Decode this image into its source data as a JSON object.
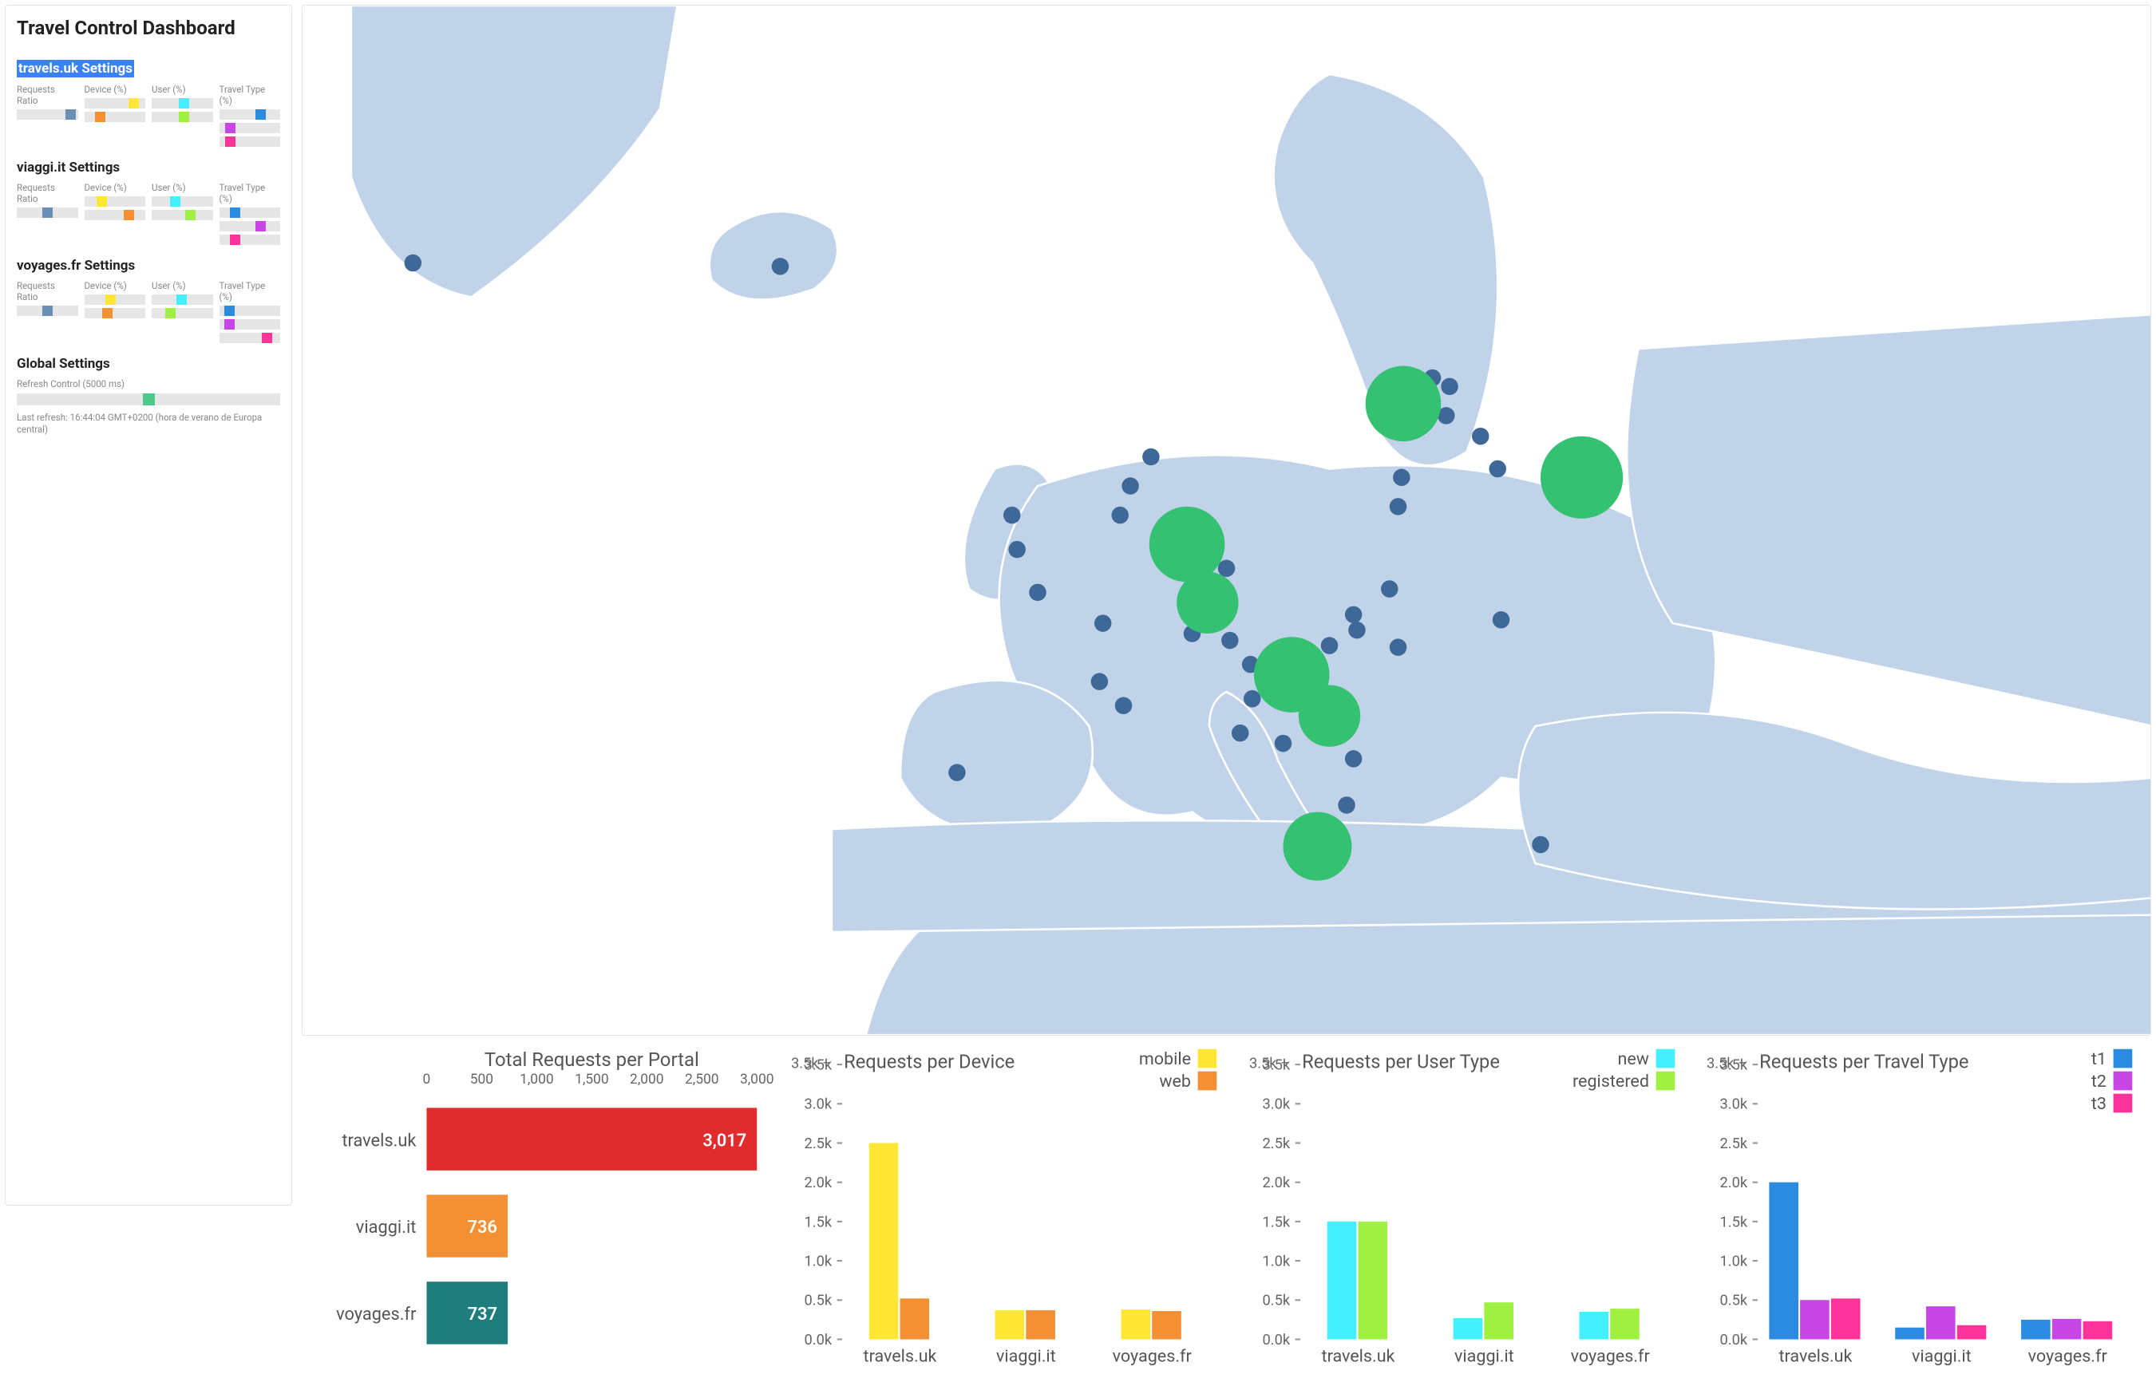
{
  "colors": {
    "map_land": "#c0d3e8",
    "map_border": "#ffffff",
    "map_dot": "#3e6897",
    "map_big": "#34c172",
    "yellow": "#ffe733",
    "orange": "#f29033",
    "cyan": "#44f0ff",
    "lime": "#9ff041",
    "blue": "#2a8be0",
    "magenta": "#c846e6",
    "pink": "#ff3399",
    "steel": "#6a8fb3",
    "red": "#e02c2c",
    "teal": "#1f7d7d",
    "grey_bar": "#e6e6e6",
    "refresh_green": "#4fc98a"
  },
  "sidebar": {
    "title": "Travel Control Dashboard",
    "sections": [
      {
        "title": "travels.uk Settings",
        "highlighted": true,
        "columns": [
          {
            "label": "Requests Ratio",
            "bars": [
              {
                "color": "#6a8fb3",
                "pos": 80
              }
            ]
          },
          {
            "label": "Device (%)",
            "bars": [
              {
                "color": "#ffe733",
                "pos": 72
              },
              {
                "color": "#f29033",
                "pos": 18
              }
            ]
          },
          {
            "label": "User (%)",
            "bars": [
              {
                "color": "#44f0ff",
                "pos": 45
              },
              {
                "color": "#9ff041",
                "pos": 45
              }
            ]
          },
          {
            "label": "Travel Type (%)",
            "bars": [
              {
                "color": "#2a8be0",
                "pos": 60
              },
              {
                "color": "#c846e6",
                "pos": 10
              },
              {
                "color": "#ff3399",
                "pos": 10
              }
            ]
          }
        ]
      },
      {
        "title": "viaggi.it Settings",
        "highlighted": false,
        "columns": [
          {
            "label": "Requests Ratio",
            "bars": [
              {
                "color": "#6a8fb3",
                "pos": 42
              }
            ]
          },
          {
            "label": "Device (%)",
            "bars": [
              {
                "color": "#ffe733",
                "pos": 20
              },
              {
                "color": "#f29033",
                "pos": 65
              }
            ]
          },
          {
            "label": "User (%)",
            "bars": [
              {
                "color": "#44f0ff",
                "pos": 30
              },
              {
                "color": "#9ff041",
                "pos": 55
              }
            ]
          },
          {
            "label": "Travel Type (%)",
            "bars": [
              {
                "color": "#2a8be0",
                "pos": 18
              },
              {
                "color": "#c846e6",
                "pos": 60
              },
              {
                "color": "#ff3399",
                "pos": 18
              }
            ]
          }
        ]
      },
      {
        "title": "voyages.fr Settings",
        "highlighted": false,
        "columns": [
          {
            "label": "Requests Ratio",
            "bars": [
              {
                "color": "#6a8fb3",
                "pos": 42
              }
            ]
          },
          {
            "label": "Device (%)",
            "bars": [
              {
                "color": "#ffe733",
                "pos": 35
              },
              {
                "color": "#f29033",
                "pos": 30
              }
            ]
          },
          {
            "label": "User (%)",
            "bars": [
              {
                "color": "#44f0ff",
                "pos": 40
              },
              {
                "color": "#9ff041",
                "pos": 22
              }
            ]
          },
          {
            "label": "Travel Type (%)",
            "bars": [
              {
                "color": "#2a8be0",
                "pos": 8
              },
              {
                "color": "#c846e6",
                "pos": 8
              },
              {
                "color": "#ff3399",
                "pos": 70
              }
            ]
          }
        ]
      }
    ],
    "global": {
      "title": "Global Settings",
      "refresh_label": "Refresh Control (5000 ms)",
      "refresh_pos": 48,
      "last_refresh": "Last refresh: 16:44:04 GMT+0200 (hora de verano de Europa central)"
    }
  },
  "map": {
    "small_dots": [
      [
        66,
        150
      ],
      [
        280,
        152
      ],
      [
        383,
        447
      ],
      [
        415,
        297
      ],
      [
        418,
        317
      ],
      [
        430,
        342
      ],
      [
        480,
        408
      ],
      [
        468,
        360
      ],
      [
        466,
        394
      ],
      [
        478,
        297
      ],
      [
        484,
        280
      ],
      [
        496,
        263
      ],
      [
        520,
        366
      ],
      [
        530,
        344
      ],
      [
        540,
        328
      ],
      [
        542,
        370
      ],
      [
        554,
        384
      ],
      [
        563,
        388
      ],
      [
        555,
        404
      ],
      [
        548,
        424
      ],
      [
        573,
        430
      ],
      [
        590,
        410
      ],
      [
        594,
        395
      ],
      [
        600,
        373
      ],
      [
        616,
        364
      ],
      [
        614,
        439
      ],
      [
        610,
        466
      ],
      [
        614,
        355
      ],
      [
        635,
        340
      ],
      [
        640,
        374
      ],
      [
        668,
        239
      ],
      [
        660,
        217
      ],
      [
        670,
        222
      ],
      [
        688,
        251
      ],
      [
        698,
        270
      ],
      [
        700,
        358
      ],
      [
        723,
        489
      ],
      [
        642,
        275
      ],
      [
        640,
        292
      ]
    ],
    "big_dots": [
      [
        517,
        314,
        22
      ],
      [
        529,
        348,
        18
      ],
      [
        578,
        390,
        22
      ],
      [
        600,
        414,
        18
      ],
      [
        593,
        490,
        20
      ],
      [
        643,
        232,
        22
      ],
      [
        747,
        275,
        24
      ]
    ]
  },
  "charts": {
    "total": {
      "title": "Total Requests per Portal",
      "xmax": 3000,
      "xticks": [
        0,
        500,
        1000,
        1500,
        2000,
        2500,
        3000
      ],
      "rows": [
        {
          "label": "travels.uk",
          "value": 3017,
          "display": "3,017",
          "color": "#e02c2c"
        },
        {
          "label": "viaggi.it",
          "value": 736,
          "display": "736",
          "color": "#f29033"
        },
        {
          "label": "voyages.fr",
          "value": 737,
          "display": "737",
          "color": "#1f7d7d"
        }
      ]
    },
    "device": {
      "title": "Requests per Device",
      "ymax": 3500,
      "yticks": [
        "0.0k",
        "0.5k",
        "1.0k",
        "1.5k",
        "2.0k",
        "2.5k",
        "3.0k",
        "3.5k"
      ],
      "legend": [
        {
          "label": "mobile",
          "color": "#ffe733"
        },
        {
          "label": "web",
          "color": "#f29033"
        }
      ],
      "categories": [
        "travels.uk",
        "viaggi.it",
        "voyages.fr"
      ],
      "series": [
        {
          "color": "#ffe733",
          "values": [
            2500,
            370,
            380
          ]
        },
        {
          "color": "#f29033",
          "values": [
            520,
            370,
            360
          ]
        }
      ]
    },
    "user": {
      "title": "Requests per User Type",
      "ymax": 3500,
      "yticks": [
        "0.0k",
        "0.5k",
        "1.0k",
        "1.5k",
        "2.0k",
        "2.5k",
        "3.0k",
        "3.5k"
      ],
      "legend": [
        {
          "label": "new",
          "color": "#44f0ff"
        },
        {
          "label": "registered",
          "color": "#9ff041"
        }
      ],
      "categories": [
        "travels.uk",
        "viaggi.it",
        "voyages.fr"
      ],
      "series": [
        {
          "color": "#44f0ff",
          "values": [
            1500,
            270,
            350
          ]
        },
        {
          "color": "#9ff041",
          "values": [
            1500,
            470,
            390
          ]
        }
      ]
    },
    "travel": {
      "title": "Requests per Travel Type",
      "ymax": 3500,
      "yticks": [
        "0.0k",
        "0.5k",
        "1.0k",
        "1.5k",
        "2.0k",
        "2.5k",
        "3.0k",
        "3.5k"
      ],
      "legend": [
        {
          "label": "t1",
          "color": "#2a8be0"
        },
        {
          "label": "t2",
          "color": "#c846e6"
        },
        {
          "label": "t3",
          "color": "#ff3399"
        }
      ],
      "categories": [
        "travels.uk",
        "viaggi.it",
        "voyages.fr"
      ],
      "series": [
        {
          "color": "#2a8be0",
          "values": [
            2000,
            150,
            250
          ]
        },
        {
          "color": "#c846e6",
          "values": [
            500,
            420,
            260
          ]
        },
        {
          "color": "#ff3399",
          "values": [
            520,
            180,
            230
          ]
        }
      ]
    }
  }
}
